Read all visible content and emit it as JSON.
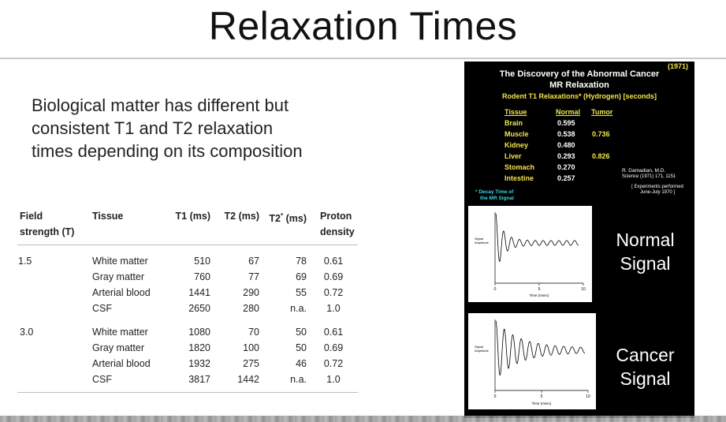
{
  "title": "Relaxation Times",
  "intro": {
    "line1": "Biological matter has different but",
    "line2": "consistent T1 and T2 relaxation",
    "line3": "times depending on its composition"
  },
  "table": {
    "headers": {
      "field_line1": "Field",
      "field_line2": "strength (T)",
      "tissue": "Tissue",
      "t1": "T1 (ms)",
      "t2": "T2 (ms)",
      "t2star_base": "T2",
      "t2star_sup": "*",
      "t2star_unit": " (ms)",
      "proton_line1": "Proton",
      "proton_line2": "density"
    },
    "groups": [
      {
        "field": "1.5",
        "rows": [
          {
            "tissue": "White matter",
            "t1": "510",
            "t2": "67",
            "t2s": "78",
            "pd": "0.61"
          },
          {
            "tissue": "Gray matter",
            "t1": "760",
            "t2": "77",
            "t2s": "69",
            "pd": "0.69"
          },
          {
            "tissue": "Arterial blood",
            "t1": "1441",
            "t2": "290",
            "t2s": "55",
            "pd": "0.72"
          },
          {
            "tissue": "CSF",
            "t1": "2650",
            "t2": "280",
            "t2s": "n.a.",
            "pd": "1.0"
          }
        ]
      },
      {
        "field": "3.0",
        "rows": [
          {
            "tissue": "White matter",
            "t1": "1080",
            "t2": "70",
            "t2s": "50",
            "pd": "0.61"
          },
          {
            "tissue": "Gray matter",
            "t1": "1820",
            "t2": "100",
            "t2s": "50",
            "pd": "0.69"
          },
          {
            "tissue": "Arterial blood",
            "t1": "1932",
            "t2": "275",
            "t2s": "46",
            "pd": "0.72"
          },
          {
            "tissue": "CSF",
            "t1": "3817",
            "t2": "1442",
            "t2s": "n.a.",
            "pd": "1.0"
          }
        ]
      }
    ]
  },
  "discovery": {
    "year": "(1971)",
    "title_line1": "The Discovery of the Abnormal Cancer",
    "title_line2": "MR Relaxation",
    "subtitle": "Rodent T1 Relaxations* (Hydrogen)  [seconds]",
    "col_tissue": "Tissue",
    "col_normal": "Normal",
    "col_tumor": "Tumor",
    "rows": [
      {
        "tissue": "Brain",
        "normal": "0.595",
        "tumor": ""
      },
      {
        "tissue": "Muscle",
        "normal": "0.538",
        "tumor": "0.736"
      },
      {
        "tissue": "Kidney",
        "normal": "0.480",
        "tumor": ""
      },
      {
        "tissue": "Liver",
        "normal": "0.293",
        "tumor": "0.826"
      },
      {
        "tissue": "Stomach",
        "normal": "0.270",
        "tumor": ""
      },
      {
        "tissue": "Intestine",
        "normal": "0.257",
        "tumor": ""
      }
    ],
    "citation_author": "R. Damadian, M.D.",
    "citation_journal": "Science (1971) 171, 1151",
    "experiments_line1": "[ Experiments performed",
    "experiments_line2": "June-July 1970 ]",
    "decay_line1": "* Decay Time of",
    "decay_line2": "the MR Signal",
    "normal_label_line1": "Normal",
    "normal_label_line2": "Signal",
    "cancer_label_line1": "Cancer",
    "cancer_label_line2": "Signal"
  },
  "plots": [
    {
      "ylabel_line1": "Signal",
      "ylabel_line2": "Amplitude",
      "xlabel": "Time (msec)",
      "tick0": "0",
      "tick5": "5",
      "tick10": "10",
      "decay": 1.1
    },
    {
      "ylabel_line1": "Signal",
      "ylabel_line2": "Amplitude",
      "xlabel": "Time (msec)",
      "tick0": "0",
      "tick5": "5",
      "tick10": "10",
      "decay": 0.38
    }
  ],
  "colors": {
    "highlight_yellow": "#f3e64a",
    "note_cyan": "#35d6e8",
    "panel_black": "#000000"
  }
}
